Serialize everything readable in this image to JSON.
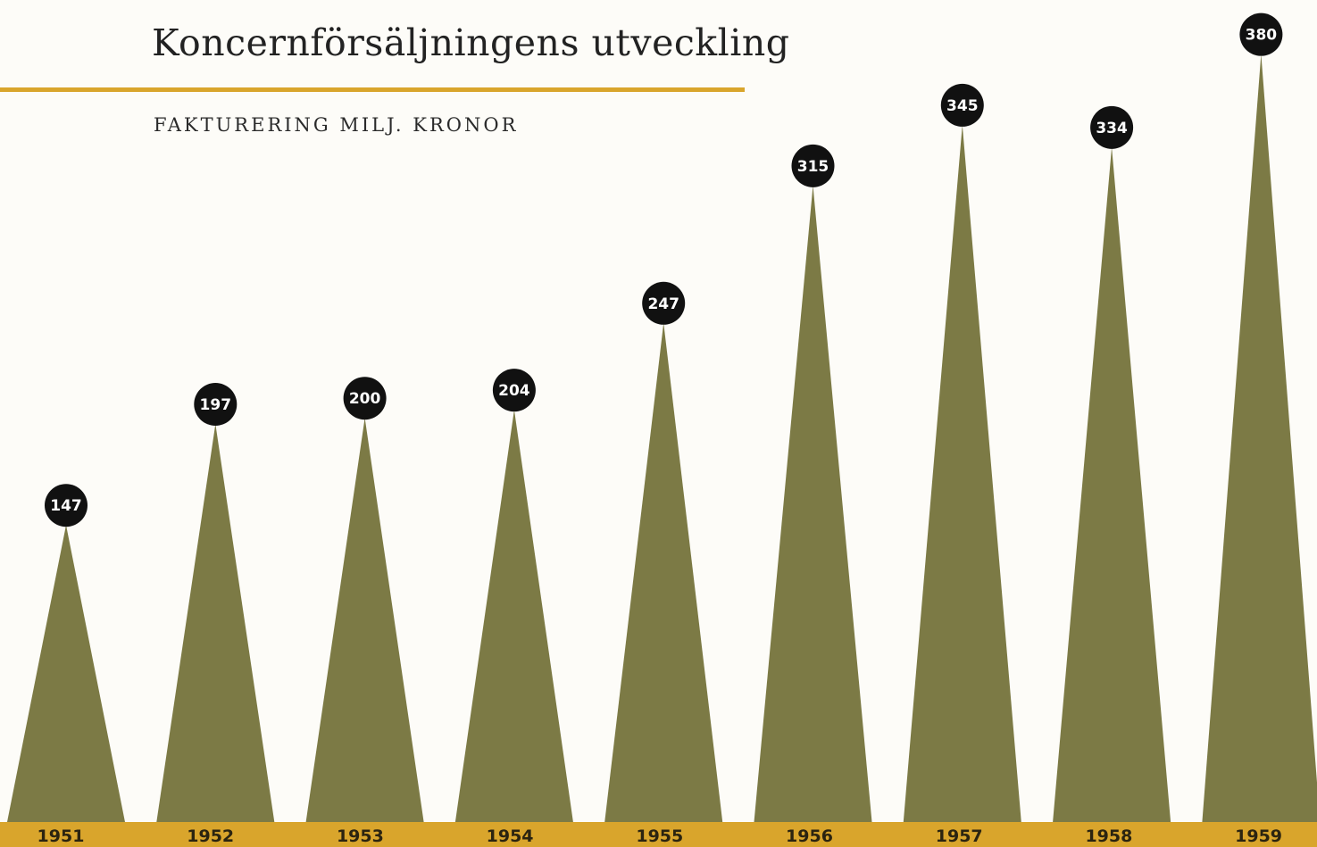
{
  "chart_data": {
    "type": "bar",
    "title": "Koncernförsäljningens utveckling",
    "subtitle": "FAKTURERING MILJ. KRONOR",
    "categories": [
      "1951",
      "1952",
      "1953",
      "1954",
      "1955",
      "1956",
      "1957",
      "1958",
      "1959"
    ],
    "values": [
      147,
      197,
      200,
      204,
      247,
      315,
      345,
      334,
      380
    ],
    "xlabel": "",
    "ylabel": "",
    "grid": false,
    "legend": "none"
  },
  "colors": {
    "background": "#fdfcf8",
    "spike": "#7c7a45",
    "accent_band": "#d9a52c",
    "label_circle": "#111111",
    "label_text": "#ffffff"
  }
}
